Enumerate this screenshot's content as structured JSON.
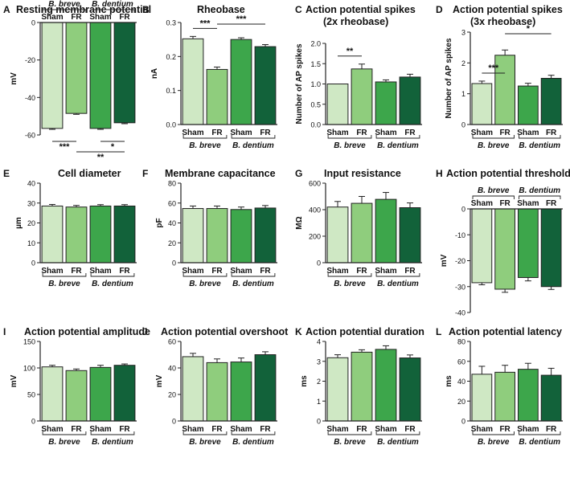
{
  "colors": {
    "bar": [
      "#cfe8c4",
      "#8fcd7d",
      "#3da64b",
      "#12623a"
    ],
    "stroke": "#222222"
  },
  "chart_data": [
    {
      "letter": "A",
      "title": "Resting membrane potential",
      "type": "bar",
      "categories": [
        "Sham",
        "FR",
        "Sham",
        "FR"
      ],
      "groups": [
        "B. breve",
        "B. dentium"
      ],
      "values": [
        -56.5,
        -48.5,
        -56.5,
        -53.5
      ],
      "errors": [
        0.5,
        0.5,
        0.5,
        0.5
      ],
      "ylabel": "mV",
      "ylim": [
        -60,
        0
      ],
      "yticks": [
        "-60",
        "-40",
        "-20",
        "0"
      ],
      "significance": [
        {
          "from": 0,
          "to": 1,
          "label": "***",
          "level": 0
        },
        {
          "from": 2,
          "to": 3,
          "label": "*",
          "level": 0
        },
        {
          "from": 1,
          "to": 3,
          "label": "**",
          "level": 1
        }
      ]
    },
    {
      "letter": "B",
      "title": "Rheobase",
      "type": "bar",
      "categories": [
        "Sham",
        "FR",
        "Sham",
        "FR"
      ],
      "groups": [
        "B. breve",
        "B. dentium"
      ],
      "values": [
        0.252,
        0.162,
        0.25,
        0.229
      ],
      "errors": [
        0.007,
        0.007,
        0.005,
        0.006
      ],
      "ylabel": "nA",
      "ylim": [
        0,
        0.3
      ],
      "yticks": [
        "0.0",
        "0.1",
        "0.2",
        "0.3"
      ],
      "significance": [
        {
          "from": 0,
          "to": 1,
          "label": "***",
          "level": 0
        },
        {
          "from": 1,
          "to": 3,
          "label": "***",
          "level": 1
        }
      ]
    },
    {
      "letter": "C",
      "title": "Action potential spikes",
      "title2": "(2x rheobase)",
      "type": "bar",
      "categories": [
        "Sham",
        "FR",
        "Sham",
        "FR"
      ],
      "groups": [
        "B. breve",
        "B. dentium"
      ],
      "values": [
        1.0,
        1.37,
        1.05,
        1.17
      ],
      "errors": [
        0.0,
        0.12,
        0.05,
        0.07
      ],
      "ylabel": "Number of AP spikes",
      "ylim": [
        0,
        2
      ],
      "yticks": [
        "0.0",
        "0.5",
        "1.0",
        "1.5",
        "2.0"
      ],
      "significance": [
        {
          "from": 0,
          "to": 1,
          "label": "**",
          "level": 0
        }
      ]
    },
    {
      "letter": "D",
      "title": "Action potential spikes",
      "title2": "(3x rheobase)",
      "type": "bar",
      "categories": [
        "Sham",
        "FR",
        "Sham",
        "FR"
      ],
      "groups": [
        "B. breve",
        "B. dentium"
      ],
      "values": [
        1.33,
        2.25,
        1.25,
        1.5
      ],
      "errors": [
        0.08,
        0.17,
        0.09,
        0.1
      ],
      "ylabel": "Number of AP spikes",
      "ylim": [
        0,
        3
      ],
      "yticks": [
        "0",
        "1",
        "2",
        "3"
      ],
      "significance": [
        {
          "from": 0,
          "to": 1,
          "label": "***",
          "level": 0
        },
        {
          "from": 1,
          "to": 3,
          "label": "*",
          "level": 1
        }
      ]
    },
    {
      "letter": "E",
      "title": "Cell diameter",
      "type": "bar",
      "categories": [
        "Sham",
        "FR",
        "Sham",
        "FR"
      ],
      "groups": [
        "B. breve",
        "B. dentium"
      ],
      "values": [
        28.5,
        28.0,
        28.5,
        28.5
      ],
      "errors": [
        0.8,
        0.8,
        0.7,
        0.7
      ],
      "ylabel": "µm",
      "ylim": [
        0,
        40
      ],
      "yticks": [
        "0",
        "10",
        "20",
        "30",
        "40"
      ],
      "significance": []
    },
    {
      "letter": "F",
      "title": "Membrane capacitance",
      "type": "bar",
      "categories": [
        "Sham",
        "FR",
        "Sham",
        "FR"
      ],
      "groups": [
        "B. breve",
        "B. dentium"
      ],
      "values": [
        54.5,
        54.5,
        53.5,
        55.0
      ],
      "errors": [
        2.5,
        2.5,
        2.5,
        2.5
      ],
      "ylabel": "pF",
      "ylim": [
        0,
        80
      ],
      "yticks": [
        "0",
        "20",
        "40",
        "60",
        "80"
      ],
      "significance": []
    },
    {
      "letter": "G",
      "title": "Input resistance",
      "type": "bar",
      "categories": [
        "Sham",
        "FR",
        "Sham",
        "FR"
      ],
      "groups": [
        "B. breve",
        "B. dentium"
      ],
      "values": [
        420,
        448,
        478,
        415
      ],
      "errors": [
        42,
        52,
        52,
        36
      ],
      "ylabel": "MΩ",
      "ylim": [
        0,
        600
      ],
      "yticks": [
        "0",
        "200",
        "400",
        "600"
      ],
      "significance": []
    },
    {
      "letter": "H",
      "title": "Action potential threshold",
      "type": "bar",
      "categories": [
        "Sham",
        "FR",
        "Sham",
        "FR"
      ],
      "groups": [
        "B. breve",
        "B. dentium"
      ],
      "values": [
        -28.5,
        -31.0,
        -26.5,
        -30.0
      ],
      "errors": [
        0.8,
        1.2,
        1.3,
        1.1
      ],
      "ylabel": "mV",
      "ylim": [
        -40,
        0
      ],
      "yticks": [
        "-40",
        "-30",
        "-20",
        "-10",
        "0"
      ],
      "significance": []
    },
    {
      "letter": "I",
      "title": "Action potential amplitude",
      "type": "bar",
      "categories": [
        "Sham",
        "FR",
        "Sham",
        "FR"
      ],
      "groups": [
        "B. breve",
        "B. dentium"
      ],
      "values": [
        102,
        95,
        101,
        105
      ],
      "errors": [
        3,
        3,
        4,
        2.5
      ],
      "ylabel": "mV",
      "ylim": [
        0,
        150
      ],
      "yticks": [
        "0",
        "50",
        "100",
        "150"
      ],
      "significance": []
    },
    {
      "letter": "J",
      "title": "Action potential overshoot",
      "type": "bar",
      "categories": [
        "Sham",
        "FR",
        "Sham",
        "FR"
      ],
      "groups": [
        "B. breve",
        "B. dentium"
      ],
      "values": [
        48.5,
        44.0,
        44.5,
        50.0
      ],
      "errors": [
        2.5,
        2.8,
        3.0,
        2.2
      ],
      "ylabel": "mV",
      "ylim": [
        0,
        60
      ],
      "yticks": [
        "0",
        "20",
        "40",
        "60"
      ],
      "significance": []
    },
    {
      "letter": "K",
      "title": "Action potential duration",
      "type": "bar",
      "categories": [
        "Sham",
        "FR",
        "Sham",
        "FR"
      ],
      "groups": [
        "B. breve",
        "B. dentium"
      ],
      "values": [
        3.18,
        3.46,
        3.6,
        3.17
      ],
      "errors": [
        0.15,
        0.12,
        0.18,
        0.15
      ],
      "ylabel": "ms",
      "ylim": [
        0,
        4
      ],
      "yticks": [
        "0",
        "1",
        "2",
        "3",
        "4"
      ],
      "significance": []
    },
    {
      "letter": "L",
      "title": "Action potential latency",
      "type": "bar",
      "categories": [
        "Sham",
        "FR",
        "Sham",
        "FR"
      ],
      "groups": [
        "B. breve",
        "B. dentium"
      ],
      "values": [
        47,
        49,
        52,
        46
      ],
      "errors": [
        8,
        7,
        6,
        7
      ],
      "ylabel": "ms",
      "ylim": [
        0,
        80
      ],
      "yticks": [
        "0",
        "20",
        "40",
        "60",
        "80"
      ],
      "significance": []
    }
  ]
}
